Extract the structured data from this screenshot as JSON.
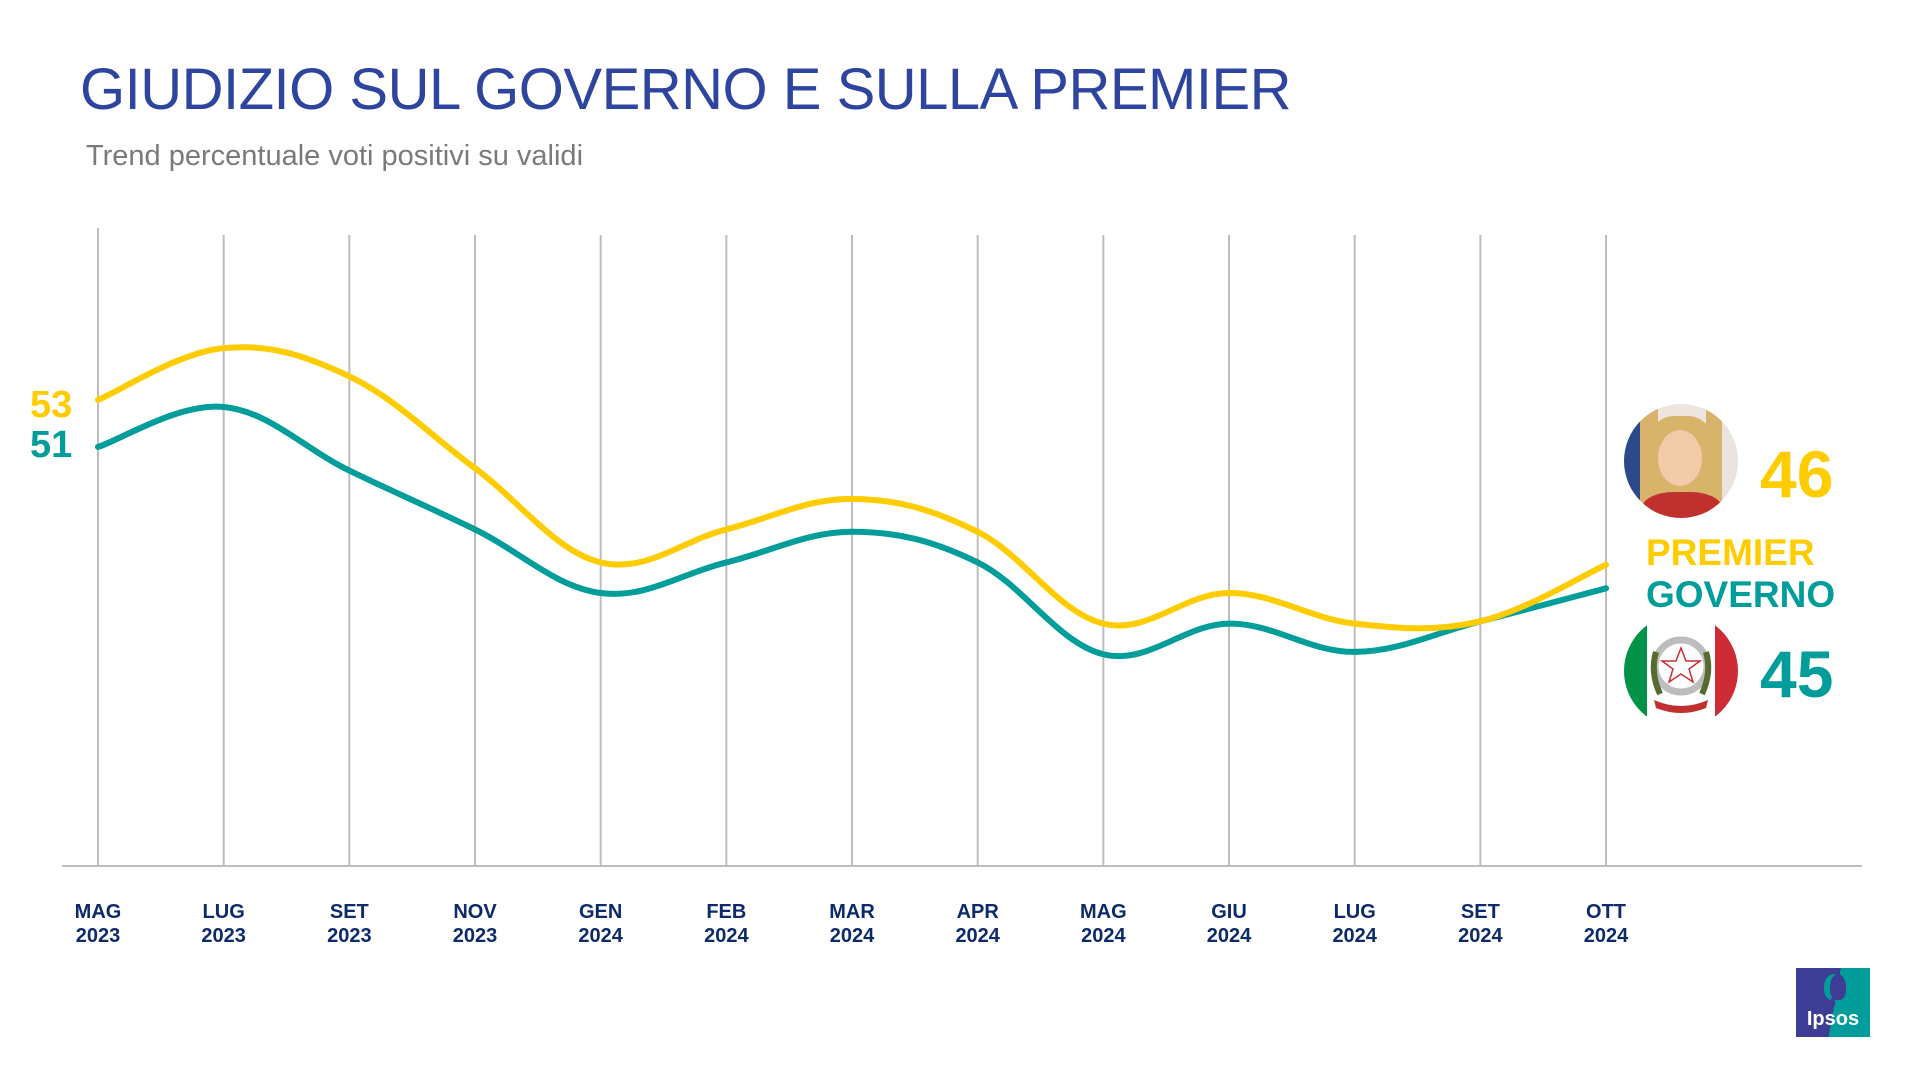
{
  "header": {
    "title": "GIUDIZIO SUL GOVERNO E SULLA PREMIER",
    "subtitle": "Trend percentuale voti positivi su validi"
  },
  "colors": {
    "title": "#2E45A0",
    "premier": "#FFCC00",
    "governo": "#009D9A",
    "axis_labels": "#0D2A6B",
    "gridline": "#BDBDBD"
  },
  "chart_data": {
    "type": "line",
    "title": "GIUDIZIO SUL GOVERNO E SULLA PREMIER",
    "subtitle": "Trend percentuale voti positivi su validi",
    "xlabel": "",
    "ylabel": "",
    "categories": [
      {
        "month": "MAG",
        "year": "2023"
      },
      {
        "month": "LUG",
        "year": "2023"
      },
      {
        "month": "SET",
        "year": "2023"
      },
      {
        "month": "NOV",
        "year": "2023"
      },
      {
        "month": "GEN",
        "year": "2024"
      },
      {
        "month": "FEB",
        "year": "2024"
      },
      {
        "month": "MAR",
        "year": "2024"
      },
      {
        "month": "APR",
        "year": "2024"
      },
      {
        "month": "MAG",
        "year": "2024"
      },
      {
        "month": "GIU",
        "year": "2024"
      },
      {
        "month": "LUG",
        "year": "2024"
      },
      {
        "month": "SET",
        "year": "2024"
      },
      {
        "month": "OTT",
        "year": "2024"
      }
    ],
    "series": [
      {
        "name": "PREMIER",
        "color": "#FFCC00",
        "values": [
          53,
          55.2,
          54.0,
          50.1,
          46.1,
          47.5,
          48.8,
          47.4,
          43.5,
          44.8,
          43.5,
          43.6,
          46
        ]
      },
      {
        "name": "GOVERNO",
        "color": "#009D9A",
        "values": [
          51,
          52.7,
          50.0,
          47.5,
          44.8,
          46.1,
          47.4,
          46.1,
          42.2,
          43.5,
          42.3,
          43.6,
          45
        ]
      }
    ],
    "start_labels": {
      "premier": "53",
      "governo": "51"
    },
    "end_labels": {
      "premier": "46",
      "governo": "45"
    },
    "y_axis_visible": false,
    "grid": "vertical",
    "legend": "right"
  },
  "legend": {
    "premier_label": "PREMIER",
    "governo_label": "GOVERNO",
    "premier_value": "46",
    "governo_value": "45",
    "premier_image": "premier-portrait",
    "governo_image": "italian-republic-emblem"
  },
  "logo": {
    "text": "Ipsos"
  }
}
